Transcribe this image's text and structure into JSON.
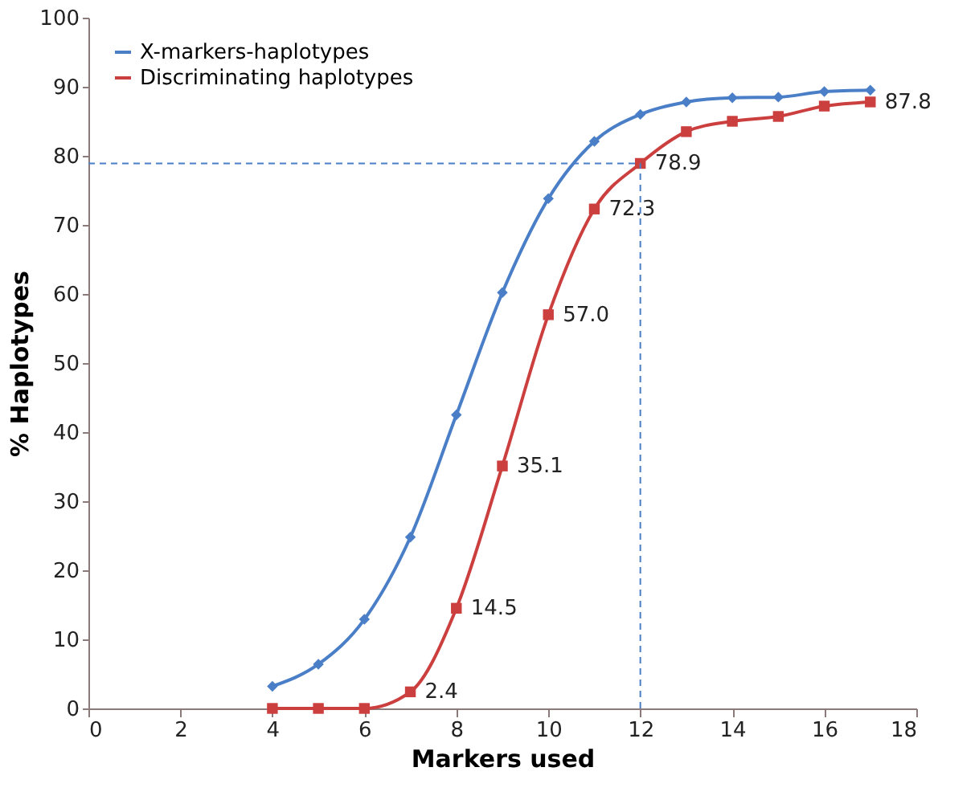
{
  "chart_data": {
    "type": "line",
    "xlabel": "Markers used",
    "ylabel": "% Haplotypes",
    "x": [
      4,
      5,
      6,
      7,
      8,
      9,
      10,
      11,
      12,
      13,
      14,
      15,
      16,
      17
    ],
    "series": [
      {
        "name": "X-markers-haplotypes",
        "color": "#4a7fc8",
        "marker": "diamond",
        "values": [
          3.2,
          6.4,
          12.9,
          24.8,
          42.5,
          60.2,
          73.8,
          82.1,
          86.0,
          87.8,
          88.4,
          88.5,
          89.3,
          89.5
        ]
      },
      {
        "name": "Discriminating haplotypes",
        "color": "#cc3f3f",
        "marker": "square",
        "values": [
          0,
          0,
          0,
          2.4,
          14.5,
          35.1,
          57.0,
          72.3,
          78.9,
          83.5,
          85.0,
          85.7,
          87.2,
          87.8
        ],
        "value_labels": [
          null,
          null,
          null,
          "2.4",
          "14.5",
          "35.1",
          "57.0",
          "72.3",
          "78.9",
          null,
          null,
          null,
          null,
          "87.8"
        ]
      }
    ],
    "xlim": [
      0,
      18
    ],
    "xticks": [
      0,
      2,
      4,
      6,
      8,
      10,
      12,
      14,
      16,
      18
    ],
    "ylim": [
      0,
      100
    ],
    "yticks": [
      0,
      10,
      20,
      30,
      40,
      50,
      60,
      70,
      80,
      90,
      100
    ],
    "ref_lines": [
      {
        "axis": "y",
        "value": 78.9,
        "color": "#4a7fc8",
        "line_style": "dashed"
      },
      {
        "axis": "x",
        "value": 12,
        "color": "#4a7fc8",
        "line_style": "dashed"
      }
    ],
    "grid": false,
    "legend": "top left",
    "line_style": "solid"
  }
}
